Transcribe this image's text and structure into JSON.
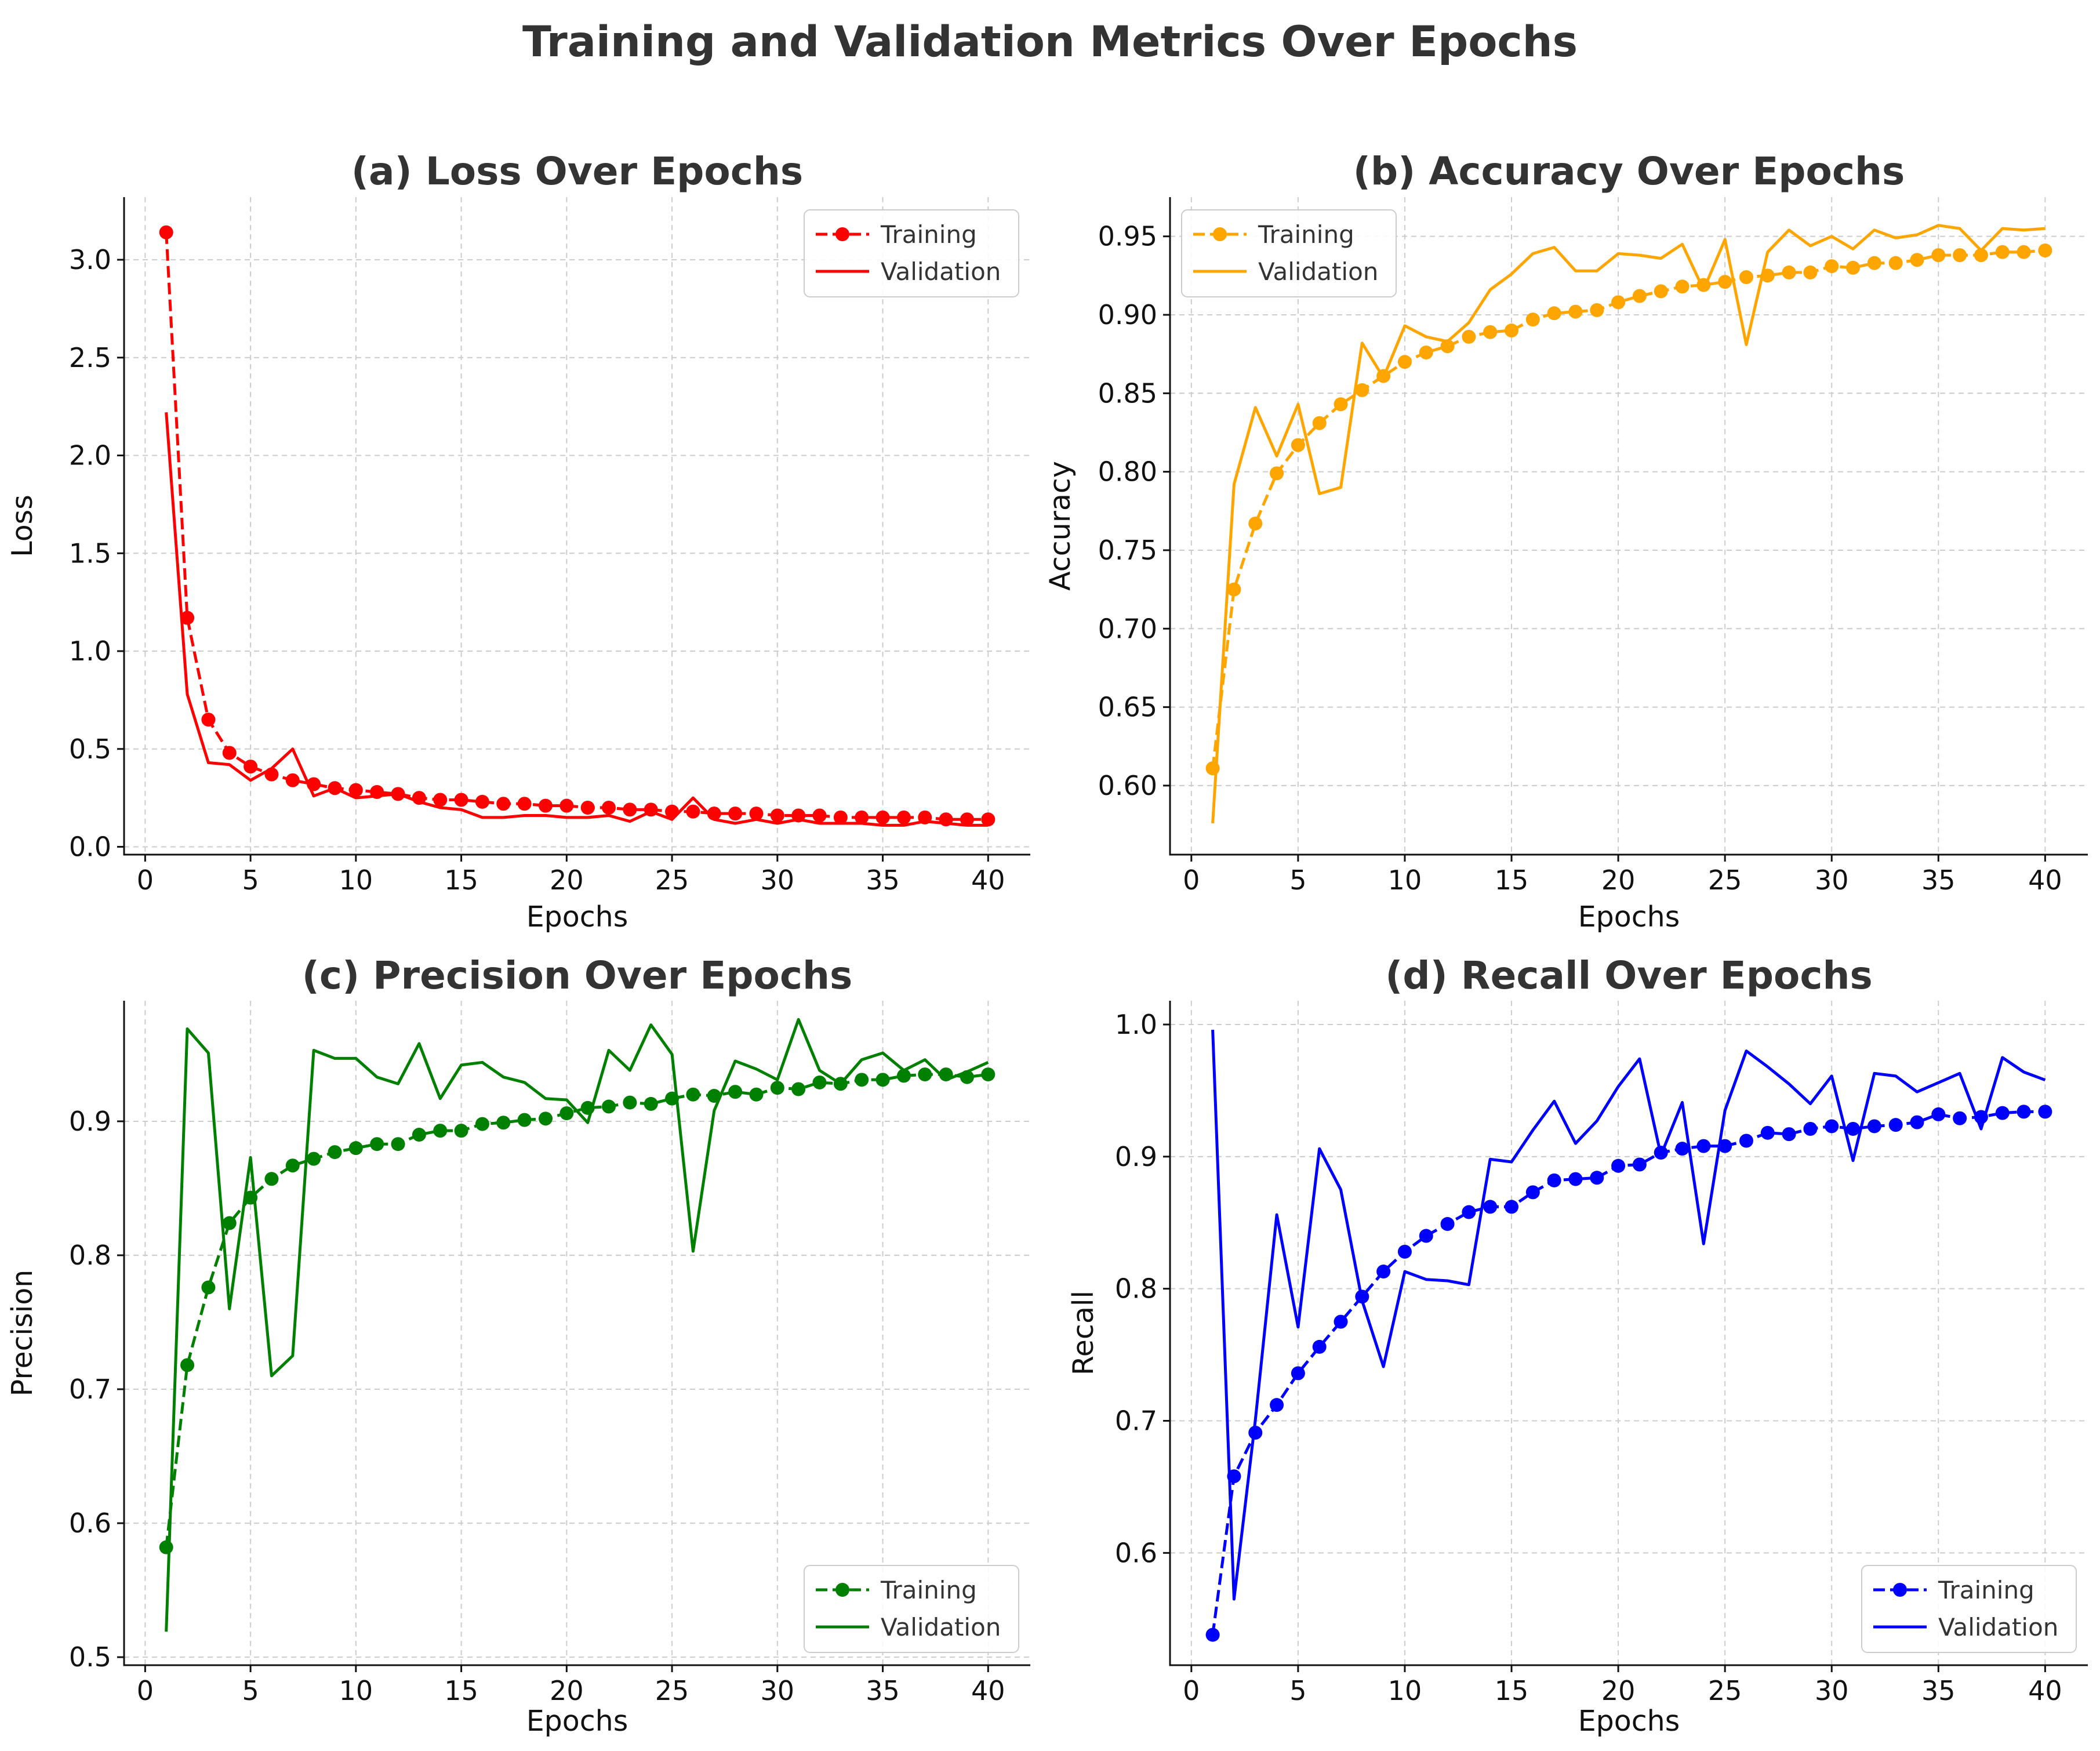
{
  "figure": {
    "title": "Training and Validation Metrics Over Epochs"
  },
  "chart_data": [
    {
      "id": "loss",
      "type": "line",
      "title": "(a) Loss Over Epochs",
      "xlabel": "Epochs",
      "ylabel": "Loss",
      "color": "#ff0000",
      "xlim": [
        -1,
        42
      ],
      "ylim": [
        -0.04,
        3.32
      ],
      "xticks": [
        0,
        5,
        10,
        15,
        20,
        25,
        30,
        35,
        40
      ],
      "yticks": [
        0.0,
        0.5,
        1.0,
        1.5,
        2.0,
        2.5,
        3.0
      ],
      "ytick_labels": [
        "0.0",
        "0.5",
        "1.0",
        "1.5",
        "2.0",
        "2.5",
        "3.0"
      ],
      "legend": "top-right",
      "x": [
        1,
        2,
        3,
        4,
        5,
        6,
        7,
        8,
        9,
        10,
        11,
        12,
        13,
        14,
        15,
        16,
        17,
        18,
        19,
        20,
        21,
        22,
        23,
        24,
        25,
        26,
        27,
        28,
        29,
        30,
        31,
        32,
        33,
        34,
        35,
        36,
        37,
        38,
        39,
        40
      ],
      "series": [
        {
          "name": "Training",
          "style": "dashed-marker",
          "values": [
            3.14,
            1.17,
            0.65,
            0.48,
            0.41,
            0.37,
            0.34,
            0.32,
            0.3,
            0.29,
            0.28,
            0.27,
            0.25,
            0.24,
            0.24,
            0.23,
            0.22,
            0.22,
            0.21,
            0.21,
            0.2,
            0.2,
            0.19,
            0.19,
            0.18,
            0.18,
            0.17,
            0.17,
            0.17,
            0.16,
            0.16,
            0.16,
            0.15,
            0.15,
            0.15,
            0.15,
            0.15,
            0.14,
            0.14,
            0.14
          ]
        },
        {
          "name": "Validation",
          "style": "solid",
          "values": [
            2.22,
            0.78,
            0.43,
            0.42,
            0.34,
            0.4,
            0.5,
            0.26,
            0.3,
            0.25,
            0.26,
            0.27,
            0.23,
            0.2,
            0.19,
            0.15,
            0.15,
            0.16,
            0.16,
            0.15,
            0.15,
            0.16,
            0.13,
            0.18,
            0.14,
            0.25,
            0.14,
            0.12,
            0.14,
            0.12,
            0.14,
            0.12,
            0.12,
            0.12,
            0.11,
            0.11,
            0.13,
            0.12,
            0.11,
            0.11
          ]
        }
      ]
    },
    {
      "id": "accuracy",
      "type": "line",
      "title": "(b) Accuracy Over Epochs",
      "xlabel": "Epochs",
      "ylabel": "Accuracy",
      "color": "#ffa500",
      "xlim": [
        -1,
        42
      ],
      "ylim": [
        0.556,
        0.975
      ],
      "xticks": [
        0,
        5,
        10,
        15,
        20,
        25,
        30,
        35,
        40
      ],
      "yticks": [
        0.6,
        0.65,
        0.7,
        0.75,
        0.8,
        0.85,
        0.9,
        0.95
      ],
      "ytick_labels": [
        "0.60",
        "0.65",
        "0.70",
        "0.75",
        "0.80",
        "0.85",
        "0.90",
        "0.95"
      ],
      "legend": "top-left",
      "x": [
        1,
        2,
        3,
        4,
        5,
        6,
        7,
        8,
        9,
        10,
        11,
        12,
        13,
        14,
        15,
        16,
        17,
        18,
        19,
        20,
        21,
        22,
        23,
        24,
        25,
        26,
        27,
        28,
        29,
        30,
        31,
        32,
        33,
        34,
        35,
        36,
        37,
        38,
        39,
        40
      ],
      "series": [
        {
          "name": "Training",
          "style": "dashed-marker",
          "values": [
            0.611,
            0.725,
            0.767,
            0.799,
            0.817,
            0.831,
            0.843,
            0.852,
            0.861,
            0.87,
            0.876,
            0.88,
            0.886,
            0.889,
            0.89,
            0.897,
            0.901,
            0.902,
            0.903,
            0.908,
            0.912,
            0.915,
            0.918,
            0.919,
            0.921,
            0.924,
            0.925,
            0.927,
            0.927,
            0.931,
            0.93,
            0.933,
            0.933,
            0.935,
            0.938,
            0.938,
            0.938,
            0.94,
            0.94,
            0.941
          ]
        },
        {
          "name": "Validation",
          "style": "solid",
          "values": [
            0.576,
            0.792,
            0.841,
            0.81,
            0.843,
            0.786,
            0.79,
            0.882,
            0.86,
            0.893,
            0.886,
            0.883,
            0.895,
            0.916,
            0.926,
            0.939,
            0.943,
            0.928,
            0.928,
            0.939,
            0.938,
            0.936,
            0.945,
            0.916,
            0.948,
            0.881,
            0.94,
            0.954,
            0.944,
            0.95,
            0.942,
            0.954,
            0.949,
            0.951,
            0.957,
            0.955,
            0.941,
            0.955,
            0.954,
            0.955
          ]
        }
      ]
    },
    {
      "id": "precision",
      "type": "line",
      "title": "(c) Precision Over Epochs",
      "xlabel": "Epochs",
      "ylabel": "Precision",
      "color": "#008000",
      "xlim": [
        -1,
        42
      ],
      "ylim": [
        0.494,
        0.99
      ],
      "xticks": [
        0,
        5,
        10,
        15,
        20,
        25,
        30,
        35,
        40
      ],
      "yticks": [
        0.5,
        0.6,
        0.7,
        0.8,
        0.9
      ],
      "ytick_labels": [
        "0.5",
        "0.6",
        "0.7",
        "0.8",
        "0.9"
      ],
      "legend": "bottom-right",
      "x": [
        1,
        2,
        3,
        4,
        5,
        6,
        7,
        8,
        9,
        10,
        11,
        12,
        13,
        14,
        15,
        16,
        17,
        18,
        19,
        20,
        21,
        22,
        23,
        24,
        25,
        26,
        27,
        28,
        29,
        30,
        31,
        32,
        33,
        34,
        35,
        36,
        37,
        38,
        39,
        40
      ],
      "series": [
        {
          "name": "Training",
          "style": "dashed-marker",
          "values": [
            0.582,
            0.718,
            0.776,
            0.824,
            0.843,
            0.857,
            0.867,
            0.872,
            0.877,
            0.88,
            0.883,
            0.883,
            0.89,
            0.893,
            0.893,
            0.898,
            0.899,
            0.901,
            0.902,
            0.906,
            0.91,
            0.911,
            0.914,
            0.913,
            0.917,
            0.92,
            0.919,
            0.922,
            0.92,
            0.925,
            0.924,
            0.929,
            0.928,
            0.931,
            0.931,
            0.934,
            0.935,
            0.935,
            0.933,
            0.935
          ]
        },
        {
          "name": "Validation",
          "style": "solid",
          "values": [
            0.519,
            0.969,
            0.951,
            0.76,
            0.873,
            0.71,
            0.725,
            0.953,
            0.947,
            0.947,
            0.933,
            0.928,
            0.958,
            0.917,
            0.942,
            0.944,
            0.933,
            0.929,
            0.917,
            0.916,
            0.899,
            0.953,
            0.938,
            0.972,
            0.95,
            0.803,
            0.908,
            0.945,
            0.939,
            0.931,
            0.976,
            0.938,
            0.928,
            0.946,
            0.951,
            0.938,
            0.946,
            0.931,
            0.937,
            0.944
          ]
        }
      ]
    },
    {
      "id": "recall",
      "type": "line",
      "title": "(d) Recall Over Epochs",
      "xlabel": "Epochs",
      "ylabel": "Recall",
      "color": "#0000ff",
      "xlim": [
        -1,
        42
      ],
      "ylim": [
        0.515,
        1.018
      ],
      "xticks": [
        0,
        5,
        10,
        15,
        20,
        25,
        30,
        35,
        40
      ],
      "yticks": [
        0.6,
        0.7,
        0.8,
        0.9,
        1.0
      ],
      "ytick_labels": [
        "0.6",
        "0.7",
        "0.8",
        "0.9",
        "1.0"
      ],
      "legend": "bottom-right",
      "x": [
        1,
        2,
        3,
        4,
        5,
        6,
        7,
        8,
        9,
        10,
        11,
        12,
        13,
        14,
        15,
        16,
        17,
        18,
        19,
        20,
        21,
        22,
        23,
        24,
        25,
        26,
        27,
        28,
        29,
        30,
        31,
        32,
        33,
        34,
        35,
        36,
        37,
        38,
        39,
        40
      ],
      "series": [
        {
          "name": "Training",
          "style": "dashed-marker",
          "values": [
            0.538,
            0.658,
            0.691,
            0.712,
            0.736,
            0.756,
            0.775,
            0.794,
            0.813,
            0.828,
            0.84,
            0.849,
            0.858,
            0.862,
            0.862,
            0.873,
            0.882,
            0.883,
            0.884,
            0.893,
            0.894,
            0.903,
            0.906,
            0.908,
            0.908,
            0.912,
            0.918,
            0.917,
            0.921,
            0.923,
            0.921,
            0.923,
            0.924,
            0.926,
            0.932,
            0.929,
            0.93,
            0.933,
            0.934,
            0.934
          ]
        },
        {
          "name": "Validation",
          "style": "solid",
          "values": [
            0.996,
            0.565,
            0.701,
            0.856,
            0.771,
            0.906,
            0.875,
            0.791,
            0.741,
            0.813,
            0.807,
            0.806,
            0.803,
            0.898,
            0.896,
            0.92,
            0.942,
            0.91,
            0.927,
            0.953,
            0.974,
            0.901,
            0.941,
            0.834,
            0.935,
            0.98,
            0.968,
            0.955,
            0.94,
            0.961,
            0.897,
            0.963,
            0.961,
            0.949,
            0.956,
            0.963,
            0.921,
            0.975,
            0.964,
            0.958
          ]
        }
      ]
    }
  ]
}
